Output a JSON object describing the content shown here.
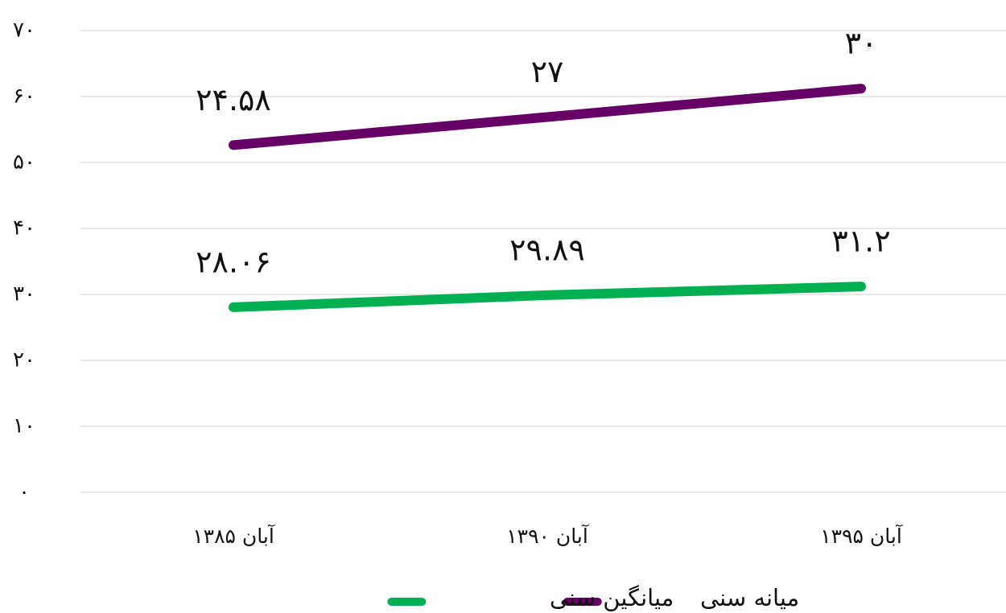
{
  "chart_data": {
    "type": "line",
    "stacked": true,
    "grid": true,
    "categories": [
      "آبان ۱۳۸۵",
      "آبان ۱۳۹۰",
      "آبان ۱۳۹۵"
    ],
    "series": [
      {
        "name": "میانگین سنی",
        "color": "#00b050",
        "values": [
          28.06,
          29.89,
          31.2
        ],
        "value_labels": [
          "۲۸.۰۶",
          "۲۹.۸۹",
          "۳۱.۲"
        ]
      },
      {
        "name": "میانه سنی",
        "color": "#660066",
        "values": [
          24.58,
          27,
          30
        ],
        "value_labels": [
          "۲۴.۵۸",
          "۲۷",
          "۳۰"
        ]
      }
    ],
    "ylim": [
      0,
      70
    ],
    "yticks": [
      {
        "value": 0,
        "label": "۰"
      },
      {
        "value": 10,
        "label": "۱۰"
      },
      {
        "value": 20,
        "label": "۲۰"
      },
      {
        "value": 30,
        "label": "۳۰"
      },
      {
        "value": 40,
        "label": "۴۰"
      },
      {
        "value": 50,
        "label": "۵۰"
      },
      {
        "value": 60,
        "label": "۶۰"
      },
      {
        "value": 70,
        "label": "۷۰"
      }
    ]
  }
}
